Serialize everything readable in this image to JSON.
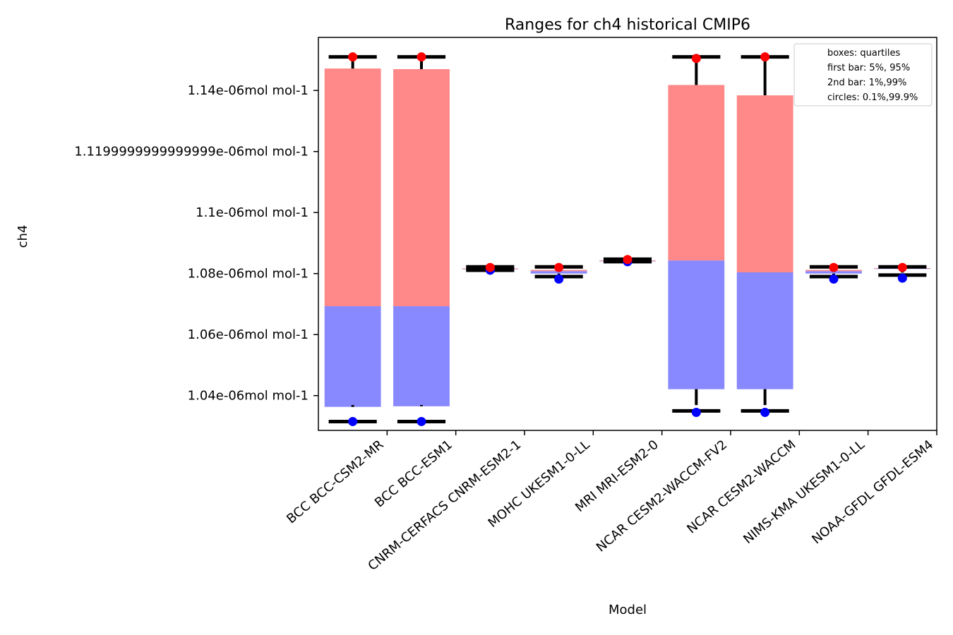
{
  "chart_data": {
    "type": "bar",
    "title": "Ranges for ch4 historical CMIP6",
    "xlabel": "Model",
    "ylabel": "ch4",
    "ylim": [
      1.0286e-06,
      1.1574e-06
    ],
    "grid": false,
    "legend_placement": "top-right",
    "legend": [
      "boxes: quartiles",
      "first bar: 5%, 95%",
      "2nd bar: 1%,99%",
      "circles: 0.1%,99.9%"
    ],
    "yticks": [
      1.04e-06,
      1.06e-06,
      1.08e-06,
      1.1e-06,
      1.12e-06,
      1.14e-06
    ],
    "ytick_labels": [
      "1.04e-06mol mol-1",
      "1.06e-06mol mol-1",
      "1.08e-06mol mol-1",
      "1.1e-06mol mol-1",
      "1.1199999999999999e-06mol mol-1",
      "1.14e-06mol mol-1"
    ],
    "categories": [
      "BCC BCC-CSM2-MR",
      "BCC BCC-ESM1",
      "CNRM-CERFACS CNRM-ESM2-1",
      "MOHC UKESM1-0-LL",
      "MRI MRI-ESM2-0",
      "NCAR CESM2-WACCM-FV2",
      "NCAR CESM2-WACCM",
      "NIMS-KMA UKESM1-0-LL",
      "NOAA-GFDL GFDL-ESM4"
    ],
    "series": [
      {
        "name": "boxes: quartiles",
        "color": "#ff8888",
        "upper_color": "#ff8888",
        "lower_color": "#8888ff",
        "q1": [
          1.0363e-06,
          1.0365e-06,
          1.0815e-06,
          1.08e-06,
          1.084e-06,
          1.0421e-06,
          1.0421e-06,
          1.08e-06,
          1.0815e-06
        ],
        "median": [
          1.0693e-06,
          1.0693e-06,
          1.0816e-06,
          1.0808e-06,
          1.0842e-06,
          1.0843e-06,
          1.0804e-06,
          1.0808e-06,
          1.0817e-06
        ],
        "q3": [
          1.1472e-06,
          1.147e-06,
          1.0817e-06,
          1.0812e-06,
          1.0843e-06,
          1.1418e-06,
          1.1384e-06,
          1.0812e-06,
          1.0818e-06
        ]
      },
      {
        "name": "first bar: 5%, 95%",
        "low": [
          1.0369e-06,
          1.0369e-06,
          1.0813e-06,
          1.0795e-06,
          1.084e-06,
          1.0369e-06,
          1.0369e-06,
          1.0795e-06,
          1.0803e-06
        ],
        "high": [
          1.1505e-06,
          1.1505e-06,
          1.082e-06,
          1.082e-06,
          1.0845e-06,
          1.15e-06,
          1.15e-06,
          1.082e-06,
          1.082e-06
        ]
      },
      {
        "name": "2nd bar: 1%,99%",
        "low": [
          1.0315e-06,
          1.0315e-06,
          1.0811e-06,
          1.079e-06,
          1.0839e-06,
          1.035e-06,
          1.035e-06,
          1.079e-06,
          1.0795e-06
        ],
        "high": [
          1.151e-06,
          1.151e-06,
          1.0822e-06,
          1.0822e-06,
          1.0847e-06,
          1.151e-06,
          1.151e-06,
          1.0822e-06,
          1.0822e-06
        ]
      },
      {
        "name": "circles: 0.1%,99.9%",
        "low_color": "#0000ff",
        "high_color": "#ff0000",
        "low": [
          1.0315e-06,
          1.0315e-06,
          1.0811e-06,
          1.0782e-06,
          1.0839e-06,
          1.0345e-06,
          1.0345e-06,
          1.0782e-06,
          1.0785e-06
        ],
        "high": [
          1.151e-06,
          1.151e-06,
          1.082e-06,
          1.082e-06,
          1.0846e-06,
          1.1505e-06,
          1.151e-06,
          1.082e-06,
          1.082e-06
        ]
      }
    ]
  }
}
